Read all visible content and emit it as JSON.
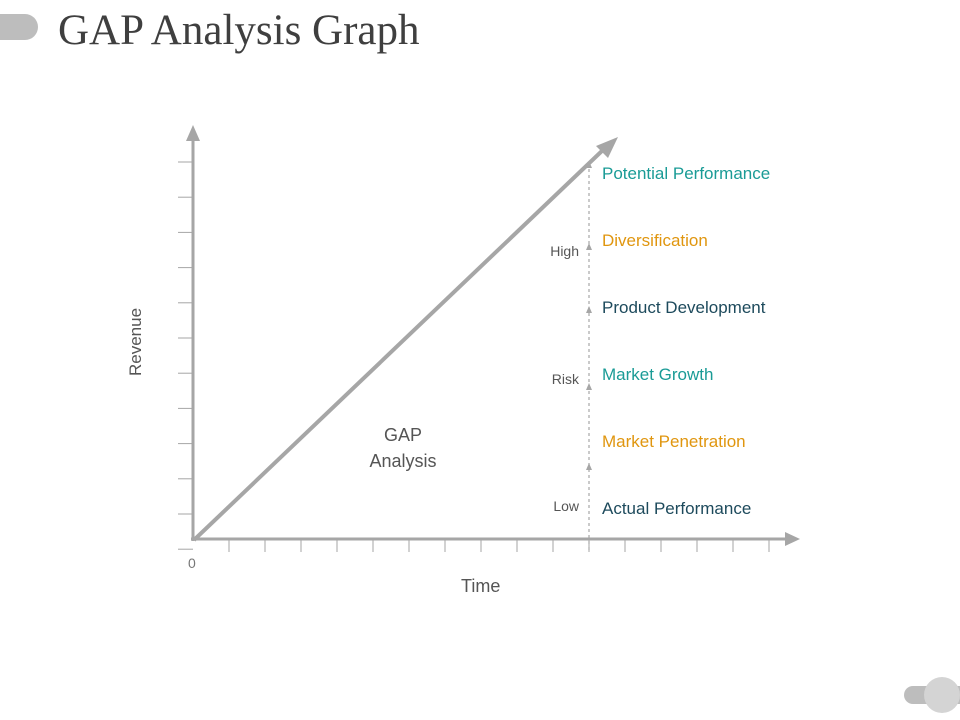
{
  "title": "GAP Analysis Graph",
  "axes": {
    "y_label": "Revenue",
    "x_label": "Time",
    "origin": "0"
  },
  "gap_label": {
    "line1": "GAP",
    "line2": "Analysis"
  },
  "risk_scale": {
    "high": "High",
    "risk": "Risk",
    "low": "Low"
  },
  "stages": [
    {
      "label": "Potential Performance",
      "color": "#1a9b96"
    },
    {
      "label": "Diversification",
      "color": "#e0960f"
    },
    {
      "label": "Product Development",
      "color": "#1d4a5c"
    },
    {
      "label": "Market Growth",
      "color": "#1a9b96"
    },
    {
      "label": "Market Penetration",
      "color": "#e0960f"
    },
    {
      "label": "Actual Performance",
      "color": "#1d4a5c"
    }
  ],
  "colors": {
    "axis": "#a6a6a6",
    "title": "#3f3f3f"
  }
}
